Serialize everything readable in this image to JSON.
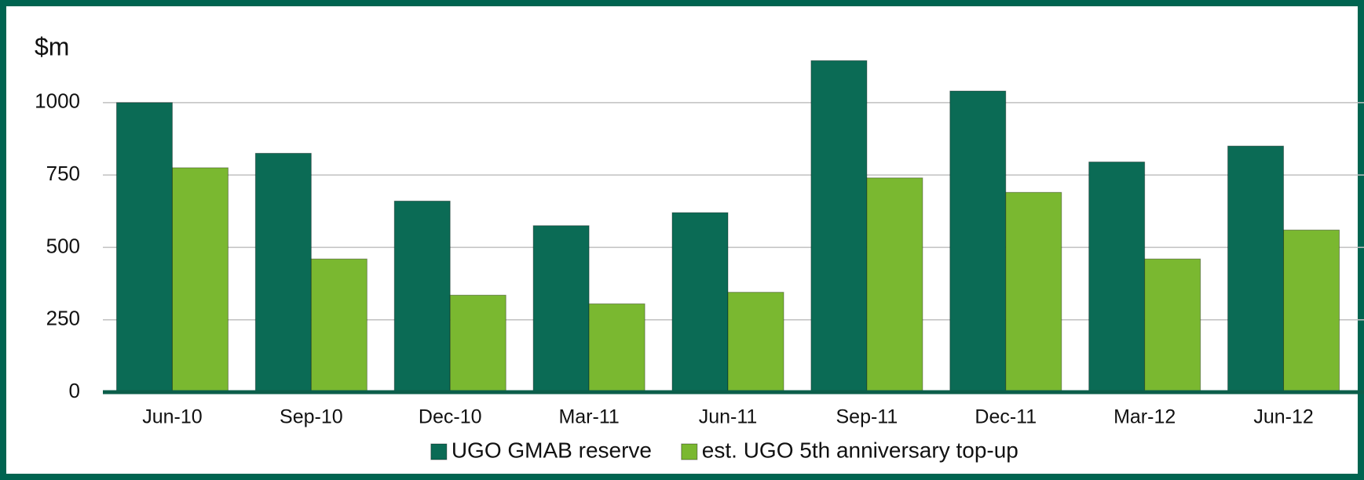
{
  "chart_data": {
    "type": "bar",
    "y_label": "$m",
    "categories": [
      "Jun-10",
      "Sep-10",
      "Dec-10",
      "Mar-11",
      "Jun-11",
      "Sep-11",
      "Dec-11",
      "Mar-12",
      "Jun-12"
    ],
    "series": [
      {
        "name": "UGO GMAB reserve",
        "color": "#0b6b55",
        "values": [
          1000,
          825,
          660,
          575,
          620,
          1145,
          1040,
          795,
          850
        ]
      },
      {
        "name": "est. UGO 5th anniversary top-up",
        "color": "#7ab830",
        "values": [
          775,
          460,
          335,
          305,
          345,
          740,
          690,
          460,
          560
        ]
      }
    ],
    "ylim": [
      0,
      1200
    ],
    "yticks": [
      0,
      250,
      500,
      750,
      1000
    ],
    "grid": true,
    "legend": "bottom"
  }
}
